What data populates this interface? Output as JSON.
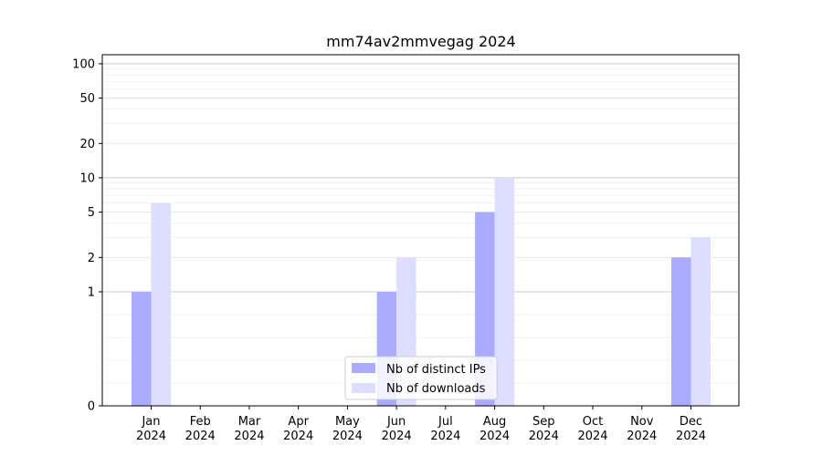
{
  "chart_data": {
    "type": "bar",
    "title": "mm74av2mmvegag 2024",
    "xlabel": "",
    "ylabel": "",
    "yscale": "symlog",
    "ylim": [
      0,
      120
    ],
    "y_ticks": [
      0,
      1,
      2,
      5,
      10,
      20,
      50,
      100
    ],
    "grid": "horizontal",
    "legend_position": "bottom-center",
    "categories": [
      [
        "Jan",
        "2024"
      ],
      [
        "Feb",
        "2024"
      ],
      [
        "Mar",
        "2024"
      ],
      [
        "Apr",
        "2024"
      ],
      [
        "May",
        "2024"
      ],
      [
        "Jun",
        "2024"
      ],
      [
        "Jul",
        "2024"
      ],
      [
        "Aug",
        "2024"
      ],
      [
        "Sep",
        "2024"
      ],
      [
        "Oct",
        "2024"
      ],
      [
        "Nov",
        "2024"
      ],
      [
        "Dec",
        "2024"
      ]
    ],
    "series": [
      {
        "name": "Nb of distinct IPs",
        "color": "#aaaaff",
        "values": [
          1,
          0,
          0,
          0,
          0,
          1,
          0,
          5,
          0,
          0,
          0,
          2
        ]
      },
      {
        "name": "Nb of downloads",
        "color": "#ddddff",
        "values": [
          6,
          0,
          0,
          0,
          0,
          2,
          0,
          10,
          0,
          0,
          0,
          3
        ]
      }
    ]
  }
}
